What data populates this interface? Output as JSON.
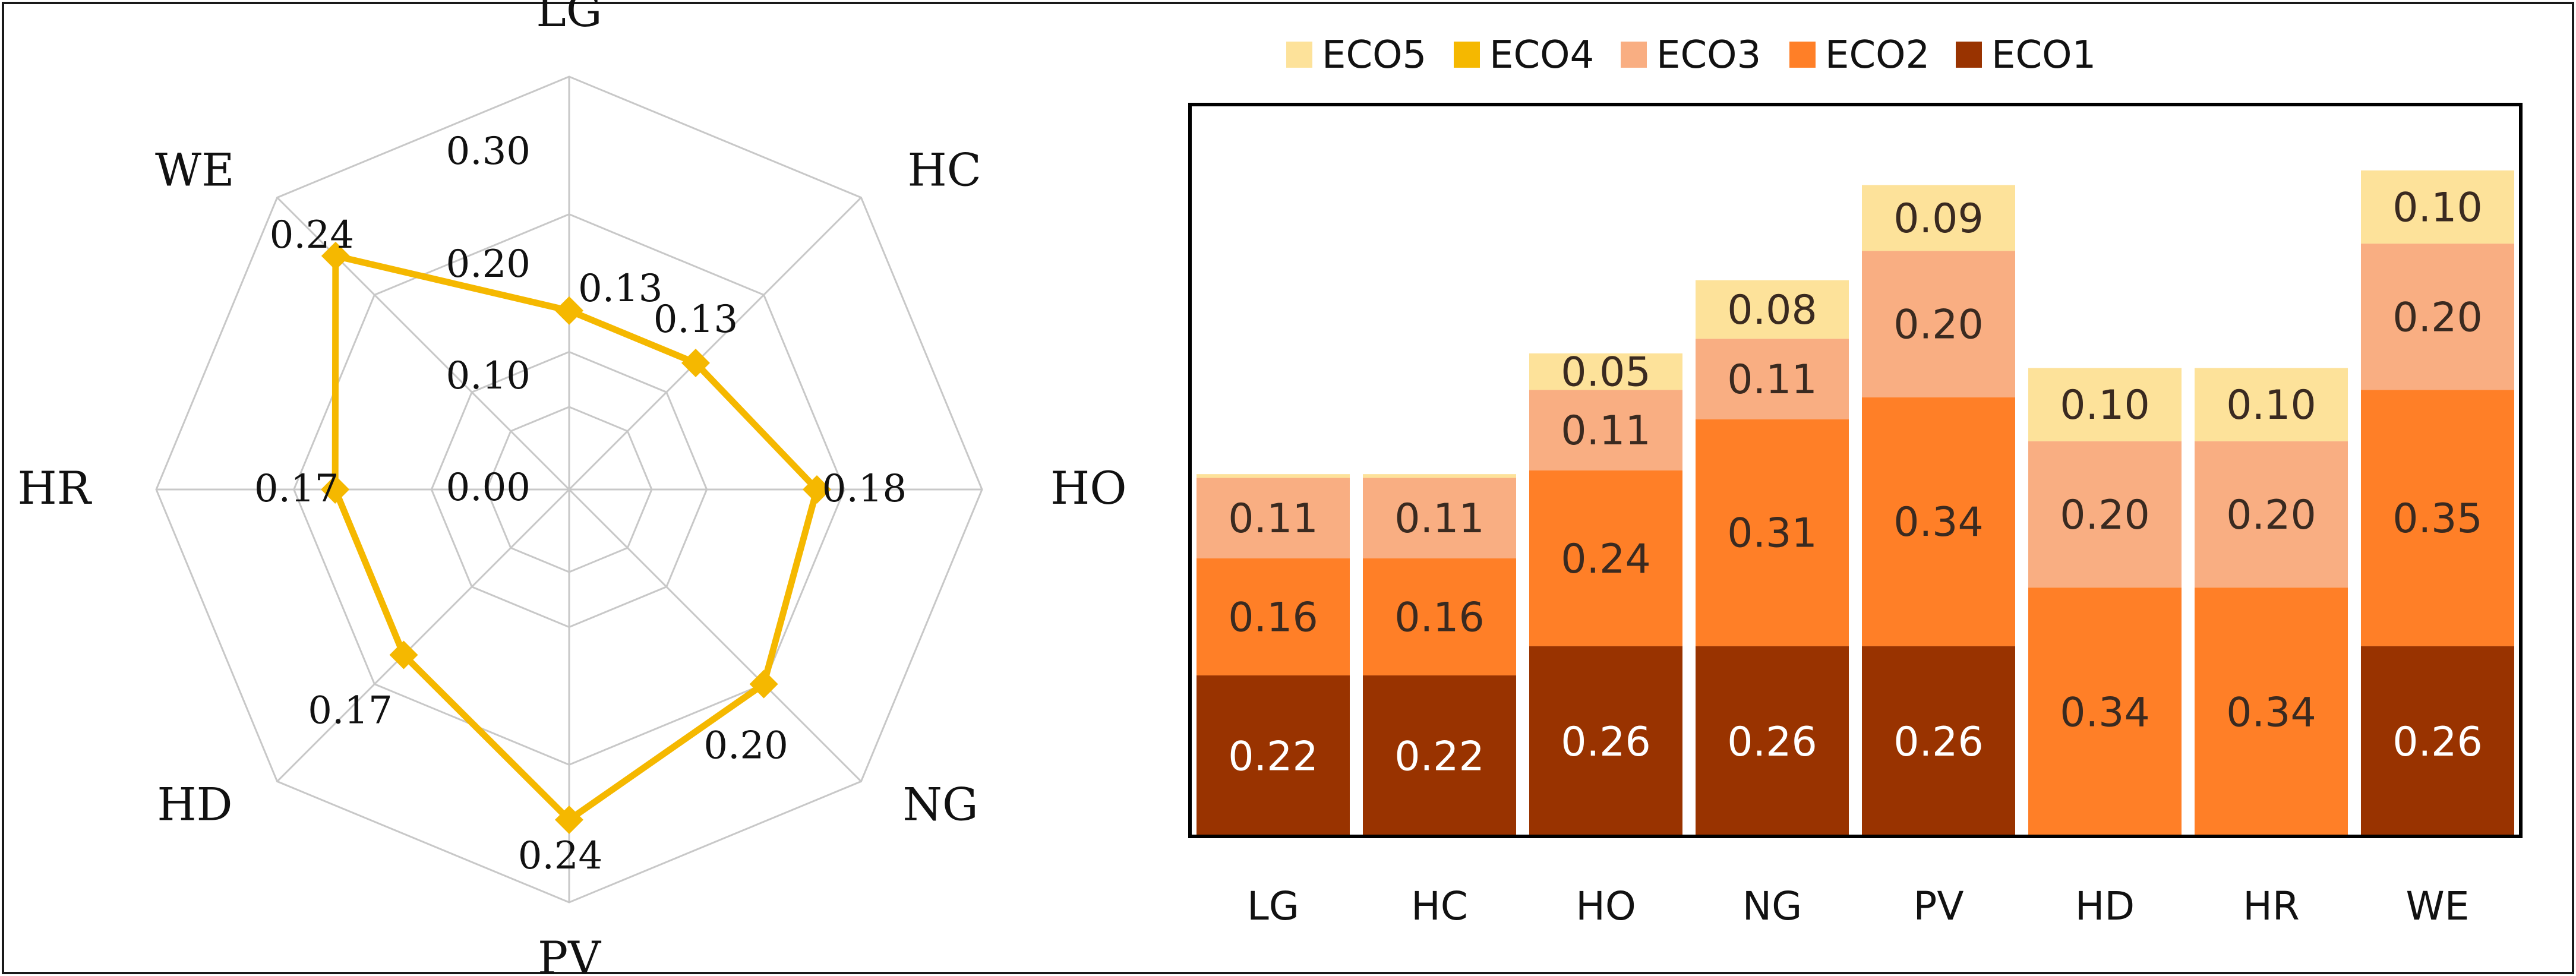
{
  "chart_data": [
    {
      "type": "radar",
      "axes": [
        "LG",
        "HC",
        "HO",
        "NG",
        "PV",
        "HD",
        "HR",
        "WE"
      ],
      "values": [
        0.13,
        0.13,
        0.18,
        0.2,
        0.24,
        0.17,
        0.17,
        0.24
      ],
      "value_labels": [
        "0.13",
        "0.13",
        "0.18",
        "0.20",
        "0.24",
        "0.17",
        "0.17",
        "0.24"
      ],
      "range": [
        0,
        0.3
      ],
      "ticks": [
        0.0,
        0.1,
        0.2,
        0.3
      ],
      "tick_labels": [
        "0.00",
        "0.10",
        "0.20",
        "0.30"
      ],
      "color": "#f5b800",
      "grid_color": "#c8c8c8"
    },
    {
      "type": "bar",
      "stacked": true,
      "categories": [
        "LG",
        "HC",
        "HO",
        "NG",
        "PV",
        "HD",
        "HR",
        "WE"
      ],
      "ylim": [
        0,
        1.0
      ],
      "series": [
        {
          "name": "ECO1",
          "color": "#993300",
          "label_color": "#ffffff",
          "values": [
            0.22,
            0.22,
            0.26,
            0.26,
            0.26,
            0,
            0,
            0.26
          ]
        },
        {
          "name": "ECO2",
          "color": "#ff7f27",
          "label_color": "#3a2a20",
          "values": [
            0.16,
            0.16,
            0.24,
            0.31,
            0.34,
            0.34,
            0.34,
            0.35
          ]
        },
        {
          "name": "ECO3",
          "color": "#f9ae82",
          "label_color": "#3a2a20",
          "values": [
            0.11,
            0.11,
            0.11,
            0.11,
            0.2,
            0.2,
            0.2,
            0.2
          ]
        },
        {
          "name": "ECO4",
          "color": "#f5b800",
          "label_color": "#3a2a20",
          "values": [
            0,
            0,
            0,
            0,
            0,
            0,
            0,
            0
          ]
        },
        {
          "name": "ECO5",
          "color": "#fde29a",
          "label_color": "#3a2a20",
          "values": [
            0.005,
            0.005,
            0.05,
            0.08,
            0.09,
            0.1,
            0.1,
            0.1
          ]
        }
      ],
      "labels": {
        "ECO1": [
          "0.22",
          "0.22",
          "0.26",
          "0.26",
          "0.26",
          "",
          "",
          "0.26"
        ],
        "ECO2": [
          "0.16",
          "0.16",
          "0.24",
          "0.31",
          "0.34",
          "0.34",
          "0.34",
          "0.35"
        ],
        "ECO3": [
          "0.11",
          "0.11",
          "0.11",
          "0.11",
          "0.20",
          "0.20",
          "0.20",
          "0.20"
        ],
        "ECO4": [
          "",
          "",
          "",
          "",
          "",
          "",
          "",
          ""
        ],
        "ECO5": [
          "",
          "",
          "0.05",
          "0.08",
          "0.09",
          "0.10",
          "0.10",
          "0.10"
        ]
      },
      "legend_order": [
        "ECO5",
        "ECO4",
        "ECO3",
        "ECO2",
        "ECO1"
      ],
      "legend_position": "top",
      "grid": false
    }
  ]
}
